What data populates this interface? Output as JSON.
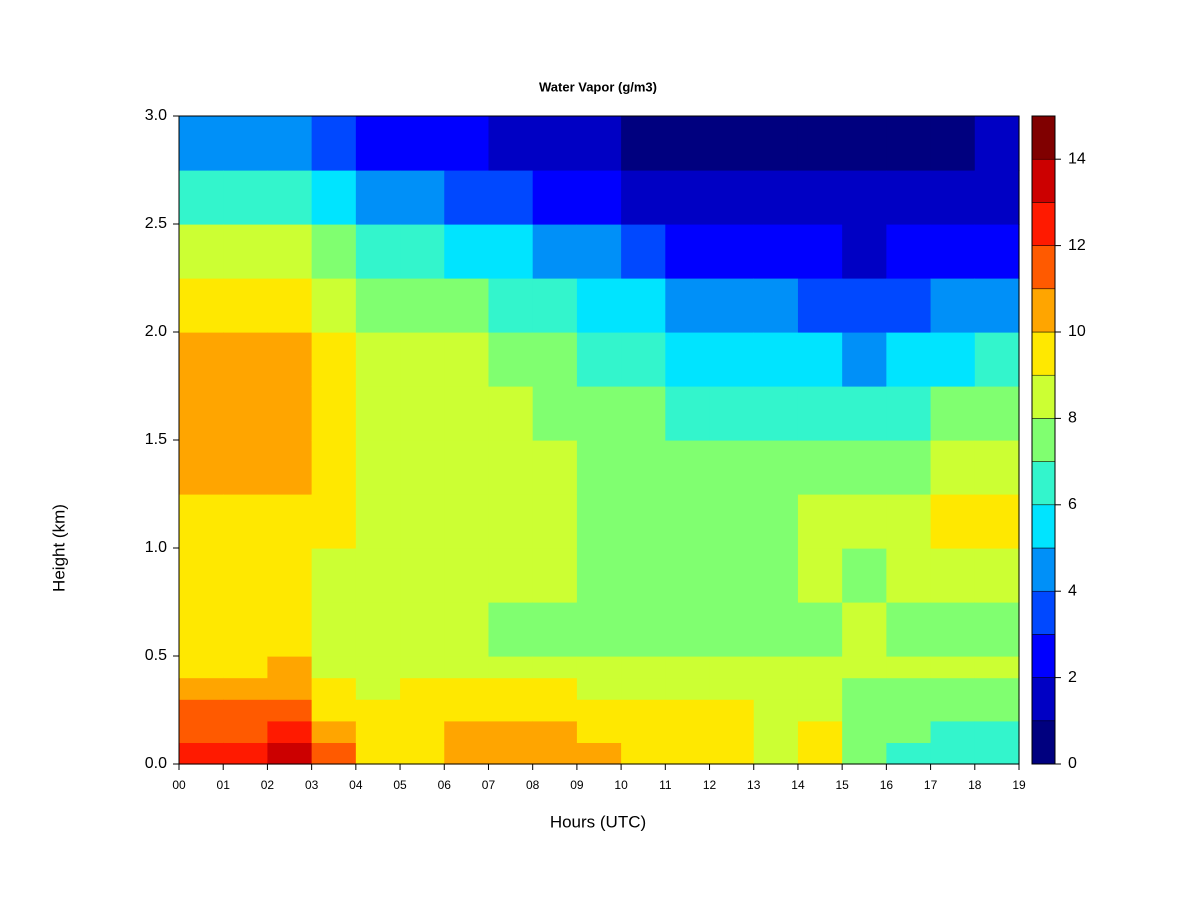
{
  "chart_data": {
    "type": "contour",
    "title": "Water Vapor (g/m3)",
    "x_label": "Hours (UTC)",
    "y_label": "Height (km)",
    "xlim": [
      0,
      19
    ],
    "ylim": [
      0,
      3
    ],
    "xticks": [
      {
        "value": 0,
        "label": "00"
      },
      {
        "value": 1,
        "label": "01"
      },
      {
        "value": 2,
        "label": "02"
      },
      {
        "value": 3,
        "label": "03"
      },
      {
        "value": 4,
        "label": "04"
      },
      {
        "value": 5,
        "label": "05"
      },
      {
        "value": 6,
        "label": "06"
      },
      {
        "value": 7,
        "label": "07"
      },
      {
        "value": 8,
        "label": "08"
      },
      {
        "value": 9,
        "label": "09"
      },
      {
        "value": 10,
        "label": "10"
      },
      {
        "value": 11,
        "label": "11"
      },
      {
        "value": 12,
        "label": "12"
      },
      {
        "value": 13,
        "label": "13"
      },
      {
        "value": 14,
        "label": "14"
      },
      {
        "value": 15,
        "label": "15"
      },
      {
        "value": 16,
        "label": "16"
      },
      {
        "value": 17,
        "label": "17"
      },
      {
        "value": 18,
        "label": "18"
      },
      {
        "value": 19,
        "label": "19"
      }
    ],
    "yticks": [
      {
        "value": 0,
        "label": "0.0"
      },
      {
        "value": 0.5,
        "label": "0.5"
      },
      {
        "value": 1,
        "label": "1.0"
      },
      {
        "value": 1.5,
        "label": "1.5"
      },
      {
        "value": 2,
        "label": "2.0"
      },
      {
        "value": 2.5,
        "label": "2.5"
      },
      {
        "value": 3,
        "label": "3.0"
      }
    ],
    "x": [
      0,
      1,
      2,
      3,
      4,
      5,
      6,
      7,
      8,
      9,
      10,
      11,
      12,
      13,
      14,
      15,
      16,
      17,
      18
    ],
    "y": [
      0,
      0.1,
      0.2,
      0.3,
      0.4,
      0.5,
      0.75,
      1,
      1.25,
      1.5,
      1.75,
      2,
      2.25,
      2.5,
      2.75
    ],
    "z": [
      [
        12.5,
        11.5,
        11.5,
        10.5,
        9.5,
        9.5,
        9.5,
        9.5,
        10.5,
        10.5,
        10.5,
        9.5,
        8.5,
        6.5,
        4.5
      ],
      [
        12.5,
        11.5,
        11.5,
        10.5,
        9.5,
        9.5,
        9.5,
        9.5,
        10.5,
        10.5,
        10.5,
        9.5,
        8.5,
        6.5,
        4.5
      ],
      [
        13.5,
        12.5,
        11.5,
        10.5,
        10.5,
        9.5,
        9.5,
        9.5,
        10.5,
        10.5,
        10.5,
        9.5,
        8.5,
        6.5,
        4.5
      ],
      [
        11.5,
        10.5,
        9.5,
        9.5,
        8.5,
        8.5,
        8.5,
        9.5,
        9.5,
        9.5,
        9.5,
        8.5,
        7.5,
        5.5,
        3.5
      ],
      [
        9.5,
        9.5,
        9.5,
        8.5,
        8.5,
        8.5,
        8.5,
        8.5,
        8.5,
        8.5,
        8.5,
        7.5,
        6.5,
        4.5,
        2.5
      ],
      [
        9.5,
        9.5,
        9.5,
        9.5,
        8.5,
        8.5,
        8.5,
        8.5,
        8.5,
        8.5,
        8.5,
        7.5,
        6.5,
        4.5,
        2.5
      ],
      [
        10.5,
        10.5,
        9.5,
        9.5,
        8.5,
        8.5,
        8.5,
        8.5,
        8.5,
        8.5,
        8.5,
        7.5,
        5.5,
        3.5,
        2.5
      ],
      [
        10.5,
        10.5,
        9.5,
        9.5,
        8.5,
        7.5,
        8.5,
        8.5,
        8.5,
        8.5,
        7.5,
        6.5,
        5.5,
        3.5,
        1.5
      ],
      [
        10.5,
        10.5,
        9.5,
        9.5,
        8.5,
        7.5,
        8.5,
        8.5,
        8.5,
        7.5,
        7.5,
        6.5,
        4.5,
        2.5,
        1.5
      ],
      [
        10.5,
        9.5,
        9.5,
        8.5,
        8.5,
        7.5,
        7.5,
        7.5,
        7.5,
        7.5,
        6.5,
        5.5,
        4.5,
        2.5,
        1.5
      ],
      [
        9.5,
        9.5,
        9.5,
        8.5,
        8.5,
        7.5,
        7.5,
        7.5,
        7.5,
        7.5,
        6.5,
        5.5,
        3.5,
        1.5,
        0.5
      ],
      [
        9.5,
        9.5,
        9.5,
        8.5,
        8.5,
        7.5,
        7.5,
        7.5,
        7.5,
        6.5,
        5.5,
        4.5,
        2.5,
        1.5,
        0.5
      ],
      [
        9.5,
        9.5,
        9.5,
        8.5,
        8.5,
        7.5,
        7.5,
        7.5,
        7.5,
        6.5,
        5.5,
        4.5,
        2.5,
        1.5,
        0.5
      ],
      [
        8.5,
        8.5,
        8.5,
        8.5,
        8.5,
        7.5,
        7.5,
        7.5,
        7.5,
        6.5,
        5.5,
        4.5,
        2.5,
        1.5,
        0.5
      ],
      [
        9.5,
        9.5,
        8.5,
        8.5,
        8.5,
        7.5,
        8.5,
        8.5,
        7.5,
        6.5,
        5.5,
        3.5,
        2.5,
        1.5,
        0.5
      ],
      [
        7.5,
        7.5,
        7.5,
        7.5,
        8.5,
        8.5,
        7.5,
        8.5,
        7.5,
        6.5,
        4.5,
        3.5,
        1.5,
        1.5,
        0.5
      ],
      [
        6.5,
        7.5,
        7.5,
        7.5,
        8.5,
        7.5,
        8.5,
        8.5,
        7.5,
        6.5,
        5.5,
        3.5,
        2.5,
        1.5,
        0.5
      ],
      [
        6.5,
        6.5,
        7.5,
        7.5,
        8.5,
        7.5,
        8.5,
        9.5,
        8.5,
        7.5,
        5.5,
        4.5,
        2.5,
        1.5,
        0.5
      ],
      [
        6.5,
        6.5,
        7.5,
        7.5,
        8.5,
        7.5,
        8.5,
        9.5,
        8.5,
        7.5,
        6.5,
        4.5,
        2.5,
        1.5,
        1.5
      ]
    ],
    "levels": [
      0,
      1,
      2,
      3,
      4,
      5,
      6,
      7,
      8,
      9,
      10,
      11,
      12,
      13,
      14,
      15
    ],
    "colors": [
      "#00007F",
      "#0000C4",
      "#0000FF",
      "#0048FF",
      "#0090F8",
      "#00E4FF",
      "#33F5CC",
      "#80FF70",
      "#CCFF33",
      "#FFE800",
      "#FFA500",
      "#FF5A00",
      "#FF1A00",
      "#CC0000",
      "#800000"
    ],
    "colorbar_ticks": [
      0,
      2,
      4,
      6,
      8,
      10,
      12,
      14
    ]
  }
}
